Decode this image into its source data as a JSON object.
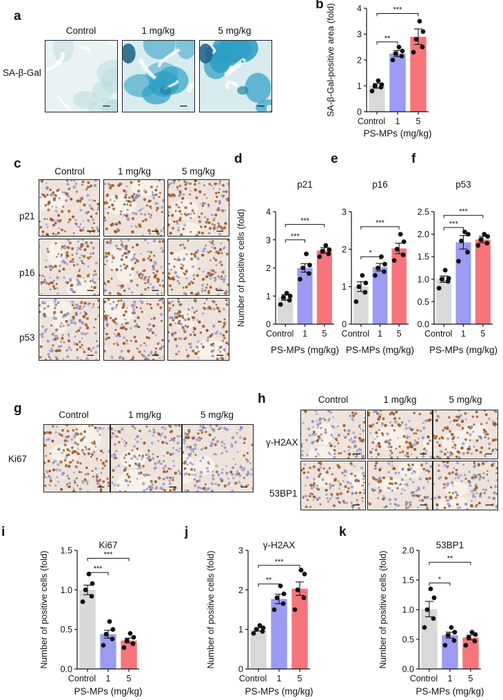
{
  "panels": {
    "a": {
      "label": "a",
      "columns": [
        "Control",
        "1 mg/kg",
        "5 mg/kg"
      ],
      "rows": [
        "SA-β-Gal"
      ]
    },
    "c": {
      "label": "c",
      "columns": [
        "Control",
        "1 mg/kg",
        "5 mg/kg"
      ],
      "rows": [
        "p21",
        "p16",
        "p53"
      ]
    },
    "g": {
      "label": "g",
      "columns": [
        "Control",
        "1 mg/kg",
        "5 mg/kg"
      ],
      "rows": [
        "Ki67"
      ]
    },
    "h": {
      "label": "h",
      "columns": [
        "Control",
        "1 mg/kg",
        "5 mg/kg"
      ],
      "rows": [
        "γ-H2AX",
        "53BP1"
      ]
    }
  },
  "colors": {
    "control": "#d9d9d9",
    "low": "#9b9bf2",
    "high": "#f7757a",
    "sa_stain": "#2e9fc4",
    "ihc_brown": "#9a5a2a",
    "ihc_blue": "#8c8cc4"
  },
  "chart_data": [
    {
      "id": "b",
      "type": "bar",
      "panel_label": "b",
      "title": "",
      "categories": [
        "Control",
        "1",
        "5"
      ],
      "values": [
        1.0,
        2.25,
        2.9
      ],
      "errors": [
        0.09,
        0.12,
        0.3
      ],
      "points": [
        [
          0.8,
          0.95,
          1.0,
          1.05,
          1.2
        ],
        [
          2.0,
          2.15,
          2.25,
          2.35,
          2.5
        ],
        [
          2.3,
          2.5,
          2.8,
          3.1,
          3.5
        ]
      ],
      "ylabel": "SA-β-Gal-positive area (fold)",
      "xlabel": "PS-MPs (mg/kg)",
      "ylim": [
        0,
        4
      ],
      "yticks": [
        "0",
        "1",
        "2",
        "3",
        "4"
      ],
      "significance": [
        {
          "from": 0,
          "to": 1,
          "label": "**"
        },
        {
          "from": 0,
          "to": 2,
          "label": "***"
        }
      ]
    },
    {
      "id": "d",
      "type": "bar",
      "panel_label": "d",
      "title": "p21",
      "categories": [
        "Control",
        "1",
        "5"
      ],
      "values": [
        0.95,
        2.0,
        2.62
      ],
      "errors": [
        0.1,
        0.15,
        0.1
      ],
      "points": [
        [
          0.7,
          0.85,
          0.95,
          1.0,
          1.1
        ],
        [
          1.6,
          1.8,
          2.0,
          2.1,
          2.5
        ],
        [
          2.4,
          2.5,
          2.6,
          2.65,
          2.8
        ]
      ],
      "ylabel": "Number of positive cells (fold)",
      "xlabel": "PS-MPs (mg/kg)",
      "ylim": [
        0,
        4
      ],
      "yticks": [
        "0",
        "1",
        "2",
        "3",
        "4"
      ],
      "significance": [
        {
          "from": 0,
          "to": 1,
          "label": "***"
        },
        {
          "from": 0,
          "to": 2,
          "label": "***"
        }
      ]
    },
    {
      "id": "e",
      "type": "bar",
      "panel_label": "e",
      "title": "p16",
      "categories": [
        "Control",
        "1",
        "5"
      ],
      "values": [
        1.0,
        1.52,
        2.02
      ],
      "errors": [
        0.13,
        0.1,
        0.14
      ],
      "points": [
        [
          0.6,
          0.85,
          1.0,
          1.1,
          1.3
        ],
        [
          1.3,
          1.4,
          1.5,
          1.6,
          1.8
        ],
        [
          1.7,
          1.85,
          2.0,
          2.2,
          2.4
        ]
      ],
      "ylabel": "",
      "xlabel": "PS-MPs (mg/kg)",
      "ylim": [
        0,
        3
      ],
      "yticks": [
        "0",
        "1",
        "2",
        "3"
      ],
      "significance": [
        {
          "from": 0,
          "to": 1,
          "label": "*"
        },
        {
          "from": 0,
          "to": 2,
          "label": "***"
        }
      ]
    },
    {
      "id": "f",
      "type": "bar",
      "panel_label": "f",
      "title": "p53",
      "categories": [
        "Control",
        "1",
        "5"
      ],
      "values": [
        1.0,
        1.82,
        1.88
      ],
      "errors": [
        0.07,
        0.15,
        0.07
      ],
      "points": [
        [
          0.8,
          0.95,
          1.0,
          1.02,
          1.2
        ],
        [
          1.4,
          1.6,
          1.85,
          2.0,
          2.05
        ],
        [
          1.75,
          1.8,
          1.88,
          1.95,
          2.0
        ]
      ],
      "ylabel": "",
      "xlabel": "PS-MPs (mg/kg)",
      "ylim": [
        0,
        2.5
      ],
      "yticks": [
        "0.0",
        "0.5",
        "1.0",
        "1.5",
        "2.0",
        "2.5"
      ],
      "significance": [
        {
          "from": 0,
          "to": 1,
          "label": "***"
        },
        {
          "from": 0,
          "to": 2,
          "label": "***"
        }
      ]
    },
    {
      "id": "i",
      "type": "bar",
      "panel_label": "i",
      "title": "Ki67",
      "categories": [
        "Control",
        "1",
        "5"
      ],
      "values": [
        1.0,
        0.44,
        0.36
      ],
      "errors": [
        0.06,
        0.05,
        0.03
      ],
      "points": [
        [
          0.85,
          0.92,
          1.0,
          1.08,
          1.2
        ],
        [
          0.3,
          0.38,
          0.44,
          0.5,
          0.6
        ],
        [
          0.27,
          0.32,
          0.36,
          0.4,
          0.45
        ]
      ],
      "ylabel": "Number of positive cells (fold)",
      "xlabel": "PS-MPs (mg/kg)",
      "ylim": [
        0,
        1.5
      ],
      "yticks": [
        "0.0",
        "0.5",
        "1.0",
        "1.5"
      ],
      "significance": [
        {
          "from": 0,
          "to": 1,
          "label": "***"
        },
        {
          "from": 0,
          "to": 2,
          "label": "***"
        }
      ]
    },
    {
      "id": "j",
      "type": "bar",
      "panel_label": "j",
      "title": "γ-H2AX",
      "categories": [
        "Control",
        "1",
        "5"
      ],
      "values": [
        1.0,
        1.77,
        2.03
      ],
      "errors": [
        0.04,
        0.12,
        0.17
      ],
      "points": [
        [
          0.9,
          0.95,
          1.0,
          1.04,
          1.1
        ],
        [
          1.5,
          1.65,
          1.8,
          1.9,
          2.1
        ],
        [
          1.5,
          1.8,
          2.0,
          2.4,
          2.5
        ]
      ],
      "ylabel": "Number of positive cells (fold)",
      "xlabel": "PS-MPs (mg/kg)",
      "ylim": [
        0,
        3
      ],
      "yticks": [
        "0",
        "1",
        "2",
        "3"
      ],
      "significance": [
        {
          "from": 0,
          "to": 1,
          "label": "**"
        },
        {
          "from": 0,
          "to": 2,
          "label": "***"
        }
      ]
    },
    {
      "id": "k",
      "type": "bar",
      "panel_label": "k",
      "title": "53BP1",
      "categories": [
        "Control",
        "1",
        "5"
      ],
      "values": [
        1.01,
        0.57,
        0.53
      ],
      "errors": [
        0.13,
        0.05,
        0.04
      ],
      "points": [
        [
          0.7,
          0.85,
          1.0,
          1.2,
          1.35
        ],
        [
          0.4,
          0.48,
          0.57,
          0.62,
          0.7
        ],
        [
          0.4,
          0.47,
          0.53,
          0.58,
          0.62
        ]
      ],
      "ylabel": "Number of positive cells (fold)",
      "xlabel": "PS-MPs (mg/kg)",
      "ylim": [
        0,
        2.0
      ],
      "yticks": [
        "0.0",
        "0.5",
        "1.0",
        "1.5",
        "2.0"
      ],
      "significance": [
        {
          "from": 0,
          "to": 1,
          "label": "*"
        },
        {
          "from": 0,
          "to": 2,
          "label": "**"
        }
      ]
    }
  ]
}
